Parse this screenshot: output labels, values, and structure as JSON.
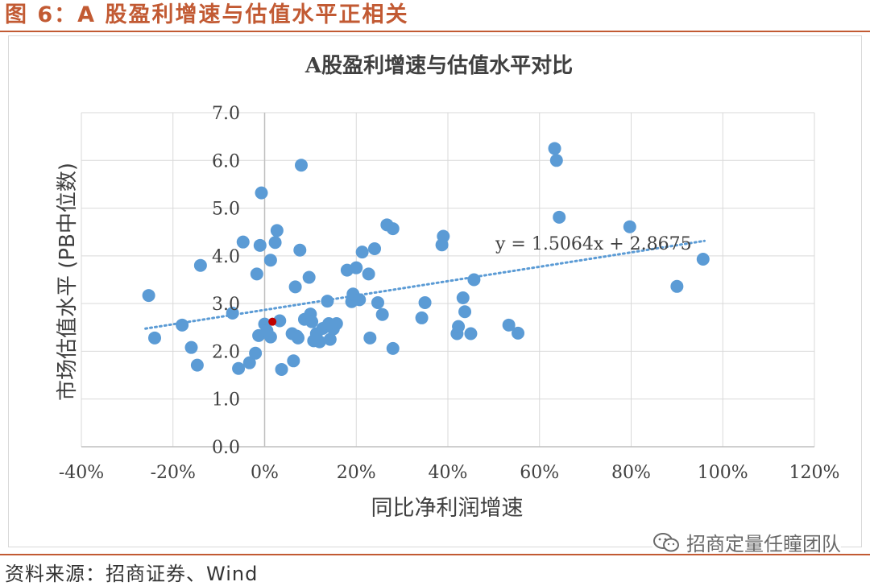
{
  "figure_title": "图 6：A 股盈利增速与估值水平正相关",
  "source": "资料来源：招商证券、Wind",
  "watermark": "招商定量任瞳团队",
  "watermark_icon": "wechat-icon",
  "colors": {
    "accent": "#c25a33",
    "points": "#5b9bd5",
    "highlight": "#c00000",
    "trend": "#5b9bd5",
    "grid": "#d9d9d9"
  },
  "chart_data": {
    "type": "scatter",
    "title": "A股盈利增速与估值水平对比",
    "xlabel": "同比净利润增速",
    "ylabel": "市场估值水平 (PB中位数)",
    "xlim": [
      -0.4,
      1.2
    ],
    "ylim": [
      0,
      7
    ],
    "x_ticks": [
      -0.4,
      -0.2,
      0,
      0.2,
      0.4,
      0.6,
      0.8,
      1.0,
      1.2
    ],
    "x_tick_labels": [
      "-40%",
      "-20%",
      "0%",
      "20%",
      "40%",
      "60%",
      "80%",
      "100%",
      "120%"
    ],
    "y_ticks": [
      0,
      1,
      2,
      3,
      4,
      5,
      6,
      7
    ],
    "y_tick_labels": [
      "0.0",
      "1.0",
      "2.0",
      "3.0",
      "4.0",
      "5.0",
      "6.0",
      "7.0"
    ],
    "grid": true,
    "trendline": {
      "slope": 1.5064,
      "intercept": 2.8675,
      "x_range": [
        -0.26,
        0.96
      ],
      "label": "y = 1.5064x + 2.8675"
    },
    "highlight_point": {
      "x": 0.017,
      "y": 2.62
    },
    "points": [
      {
        "x": -0.253,
        "y": 3.17
      },
      {
        "x": -0.24,
        "y": 2.28
      },
      {
        "x": -0.18,
        "y": 2.55
      },
      {
        "x": -0.16,
        "y": 2.08
      },
      {
        "x": -0.147,
        "y": 1.71
      },
      {
        "x": -0.14,
        "y": 3.8
      },
      {
        "x": -0.07,
        "y": 2.8
      },
      {
        "x": -0.057,
        "y": 1.64
      },
      {
        "x": -0.047,
        "y": 4.29
      },
      {
        "x": -0.033,
        "y": 1.76
      },
      {
        "x": -0.02,
        "y": 1.96
      },
      {
        "x": -0.017,
        "y": 3.62
      },
      {
        "x": -0.013,
        "y": 2.33
      },
      {
        "x": -0.01,
        "y": 4.22
      },
      {
        "x": -0.007,
        "y": 5.32
      },
      {
        "x": 0.0,
        "y": 2.57
      },
      {
        "x": 0.005,
        "y": 2.43
      },
      {
        "x": 0.013,
        "y": 2.3
      },
      {
        "x": 0.013,
        "y": 3.91
      },
      {
        "x": 0.023,
        "y": 4.28
      },
      {
        "x": 0.027,
        "y": 4.53
      },
      {
        "x": 0.033,
        "y": 2.64
      },
      {
        "x": 0.037,
        "y": 1.62
      },
      {
        "x": 0.06,
        "y": 2.37
      },
      {
        "x": 0.063,
        "y": 1.8
      },
      {
        "x": 0.067,
        "y": 3.35
      },
      {
        "x": 0.07,
        "y": 2.32
      },
      {
        "x": 0.073,
        "y": 2.28
      },
      {
        "x": 0.077,
        "y": 4.12
      },
      {
        "x": 0.08,
        "y": 5.9
      },
      {
        "x": 0.087,
        "y": 2.67
      },
      {
        "x": 0.097,
        "y": 3.55
      },
      {
        "x": 0.1,
        "y": 2.78
      },
      {
        "x": 0.103,
        "y": 2.62
      },
      {
        "x": 0.107,
        "y": 2.22
      },
      {
        "x": 0.113,
        "y": 2.37
      },
      {
        "x": 0.12,
        "y": 2.2
      },
      {
        "x": 0.127,
        "y": 2.48
      },
      {
        "x": 0.137,
        "y": 3.05
      },
      {
        "x": 0.14,
        "y": 2.58
      },
      {
        "x": 0.143,
        "y": 2.25
      },
      {
        "x": 0.15,
        "y": 2.47
      },
      {
        "x": 0.157,
        "y": 2.58
      },
      {
        "x": 0.18,
        "y": 3.7
      },
      {
        "x": 0.19,
        "y": 3.04
      },
      {
        "x": 0.193,
        "y": 3.2
      },
      {
        "x": 0.2,
        "y": 3.75
      },
      {
        "x": 0.207,
        "y": 3.08
      },
      {
        "x": 0.213,
        "y": 4.08
      },
      {
        "x": 0.227,
        "y": 3.62
      },
      {
        "x": 0.23,
        "y": 2.28
      },
      {
        "x": 0.24,
        "y": 4.15
      },
      {
        "x": 0.247,
        "y": 3.02
      },
      {
        "x": 0.257,
        "y": 2.77
      },
      {
        "x": 0.267,
        "y": 4.65
      },
      {
        "x": 0.28,
        "y": 2.06
      },
      {
        "x": 0.28,
        "y": 4.57
      },
      {
        "x": 0.343,
        "y": 2.7
      },
      {
        "x": 0.35,
        "y": 3.02
      },
      {
        "x": 0.387,
        "y": 4.23
      },
      {
        "x": 0.39,
        "y": 4.41
      },
      {
        "x": 0.42,
        "y": 2.37
      },
      {
        "x": 0.423,
        "y": 2.52
      },
      {
        "x": 0.433,
        "y": 3.12
      },
      {
        "x": 0.437,
        "y": 2.83
      },
      {
        "x": 0.45,
        "y": 2.37
      },
      {
        "x": 0.457,
        "y": 3.5
      },
      {
        "x": 0.533,
        "y": 2.55
      },
      {
        "x": 0.553,
        "y": 2.38
      },
      {
        "x": 0.633,
        "y": 6.25
      },
      {
        "x": 0.637,
        "y": 6.0
      },
      {
        "x": 0.643,
        "y": 4.81
      },
      {
        "x": 0.797,
        "y": 4.61
      },
      {
        "x": 0.9,
        "y": 3.36
      },
      {
        "x": 0.957,
        "y": 3.93
      }
    ]
  }
}
